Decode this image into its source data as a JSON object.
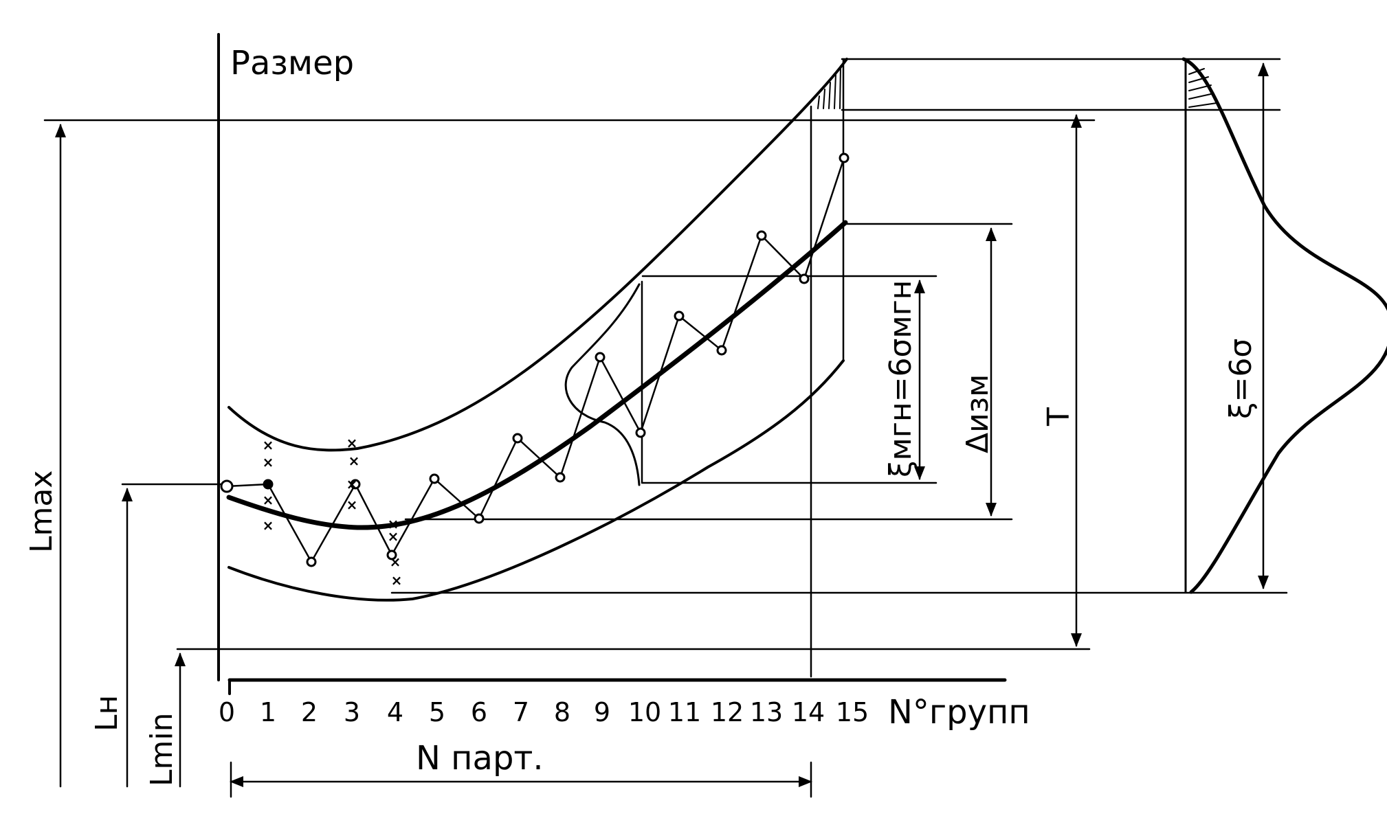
{
  "diagram": {
    "y_axis_label": "Размер",
    "x_axis_label": "N°групп",
    "group_ticks": [
      "0",
      "1",
      "2",
      "3",
      "4",
      "5",
      "6",
      "7",
      "8",
      "9",
      "10",
      "11",
      "12",
      "13",
      "14",
      "15"
    ],
    "n_part_label": "N парт.",
    "labels": {
      "l_max": "Lmax",
      "l_n": "Lн",
      "l_min": "Lmin",
      "t": "T",
      "delta_izm": "Δизм",
      "xi_mgn": "ξмгн=6σмгн",
      "xi": "ξ=6σ"
    },
    "ink_color": "#000000",
    "background_color": "#ffffff"
  }
}
